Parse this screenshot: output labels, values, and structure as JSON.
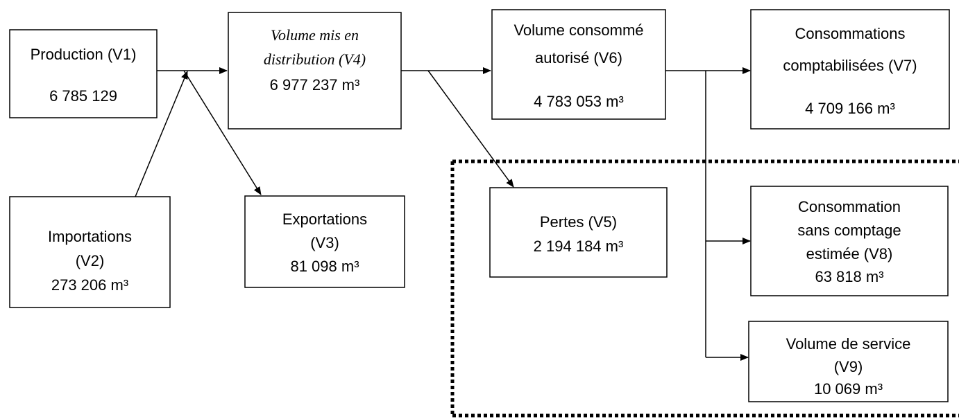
{
  "nodes": [
    {
      "label": [
        "Production (V1)"
      ],
      "value": "6 785 129"
    },
    {
      "label": [
        "Volume mis en",
        "distribution (V4)"
      ],
      "value": "6 977 237 m³"
    },
    {
      "label": [
        "Volume consommé",
        "autorisé (V6)"
      ],
      "value": "4 783 053 m³"
    },
    {
      "label": [
        "Consommations",
        "comptabilisées (V7)"
      ],
      "value": "4 709 166 m³"
    },
    {
      "label": [
        "Importations",
        "(V2)"
      ],
      "value": "273 206 m³"
    },
    {
      "label": [
        "Exportations",
        "(V3)"
      ],
      "value": "81 098 m³"
    },
    {
      "label": [
        "Pertes (V5)"
      ],
      "value": "2 194 184 m³"
    },
    {
      "label": [
        "Consommation",
        "sans comptage",
        "estimée (V8)"
      ],
      "value": "63 818 m³"
    },
    {
      "label": [
        "Volume de service",
        "(V9)"
      ],
      "value": "10 069 m³"
    }
  ]
}
